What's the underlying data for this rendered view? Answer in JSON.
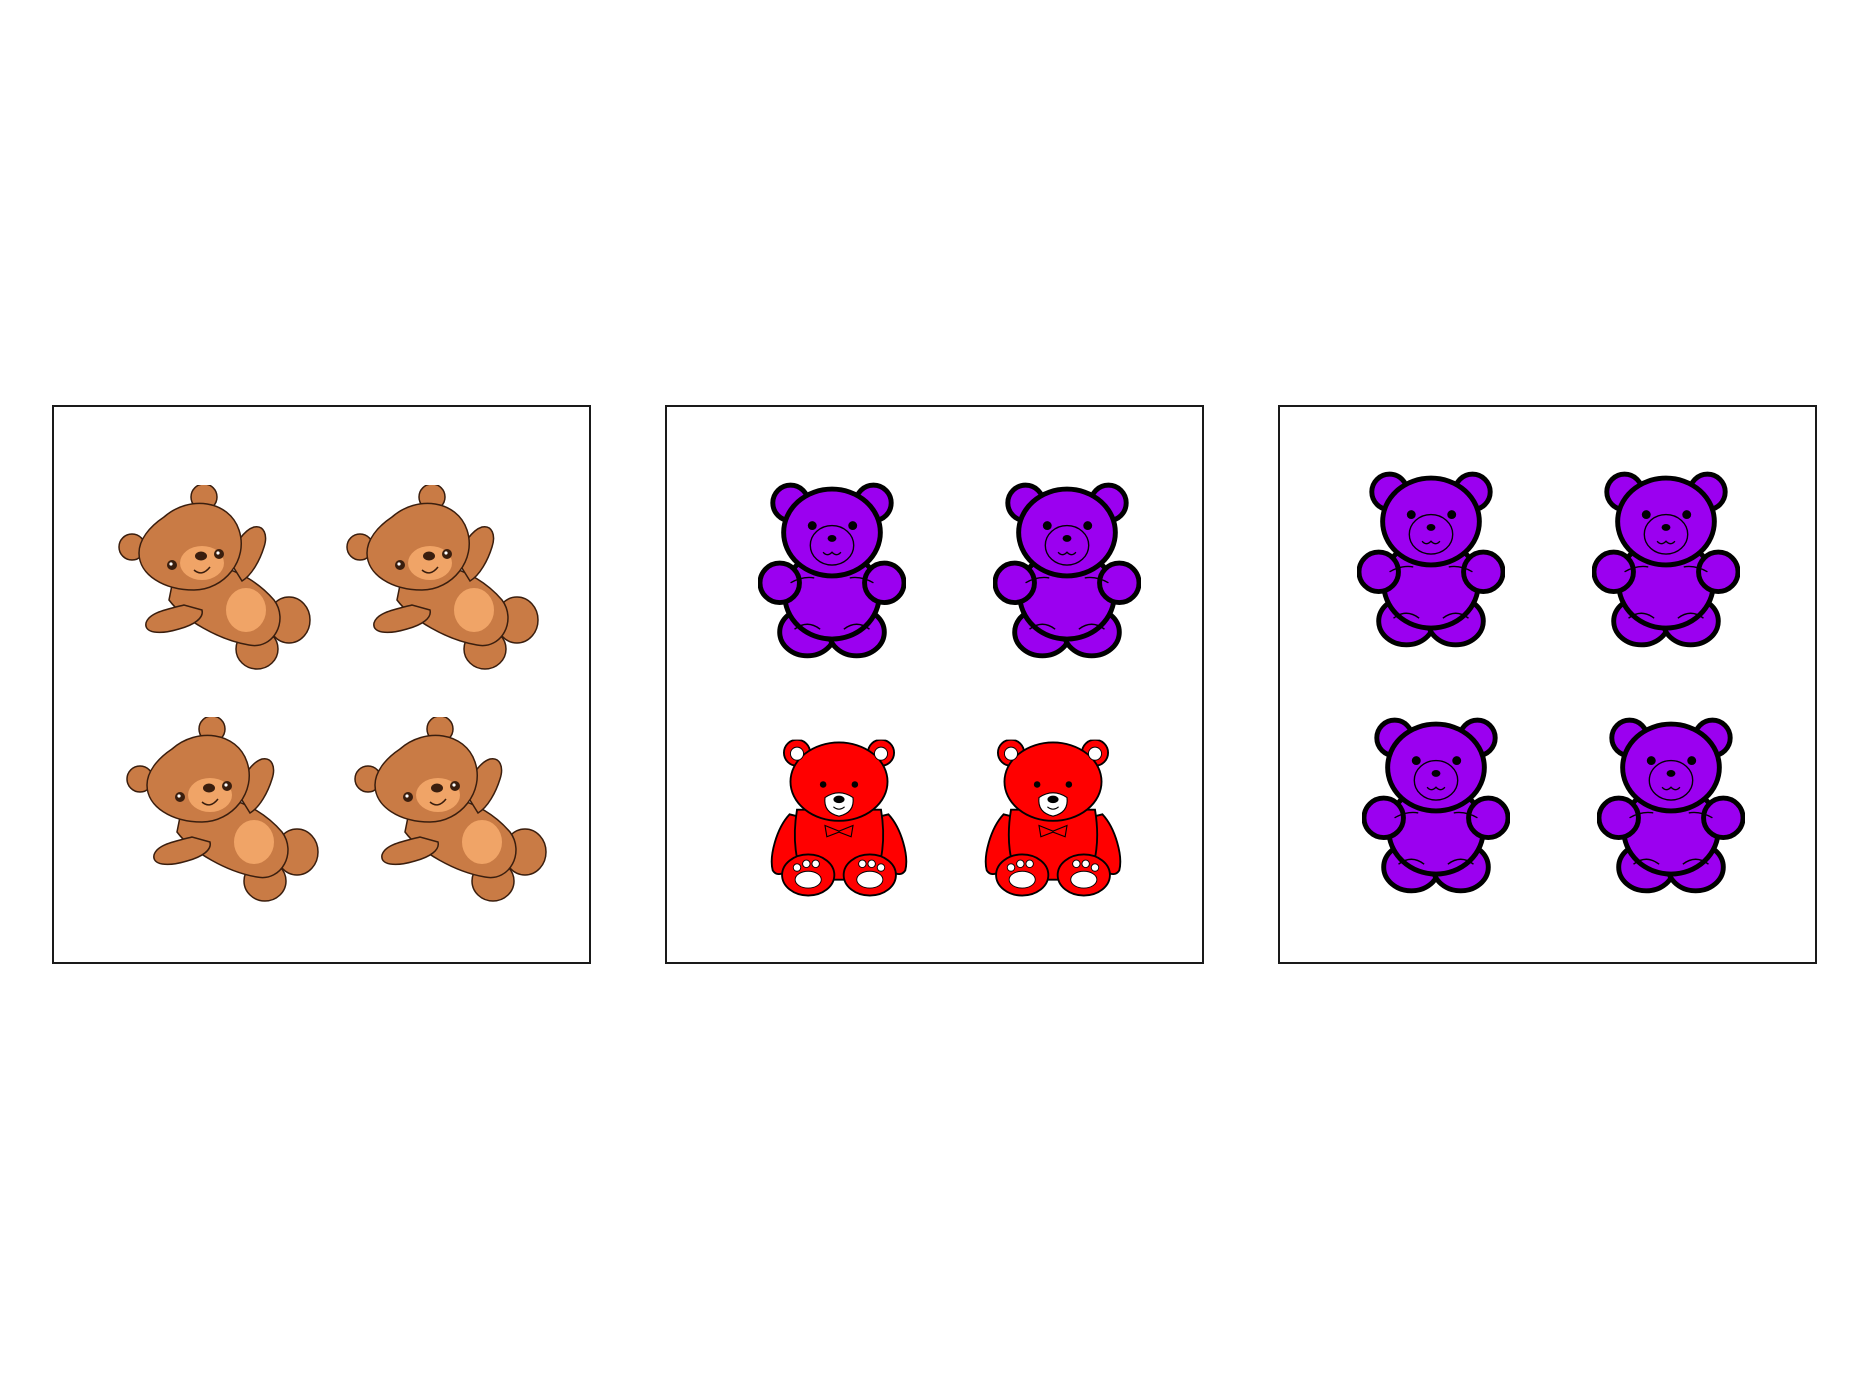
{
  "colors": {
    "brown_body": "#c97b45",
    "brown_light": "#f0a467",
    "purple": "#9b00f0",
    "red": "#ff0000",
    "outline": "#000000",
    "panel_border": "#1a1a1a"
  },
  "panels": [
    {
      "id": "panel-1",
      "bears": [
        {
          "icon": "brown-teddy-bear-icon",
          "color": "#c97b45"
        },
        {
          "icon": "brown-teddy-bear-icon",
          "color": "#c97b45"
        },
        {
          "icon": "brown-teddy-bear-icon",
          "color": "#c97b45"
        },
        {
          "icon": "brown-teddy-bear-icon",
          "color": "#c97b45"
        }
      ]
    },
    {
      "id": "panel-2",
      "bears": [
        {
          "icon": "purple-gummy-bear-icon",
          "color": "#9b00f0"
        },
        {
          "icon": "purple-gummy-bear-icon",
          "color": "#9b00f0"
        },
        {
          "icon": "red-teddy-bear-icon",
          "color": "#ff0000"
        },
        {
          "icon": "red-teddy-bear-icon",
          "color": "#ff0000"
        }
      ]
    },
    {
      "id": "panel-3",
      "bears": [
        {
          "icon": "purple-gummy-bear-icon",
          "color": "#9b00f0"
        },
        {
          "icon": "purple-gummy-bear-icon",
          "color": "#9b00f0"
        },
        {
          "icon": "purple-gummy-bear-icon",
          "color": "#9b00f0"
        },
        {
          "icon": "purple-gummy-bear-icon",
          "color": "#9b00f0"
        }
      ]
    }
  ]
}
